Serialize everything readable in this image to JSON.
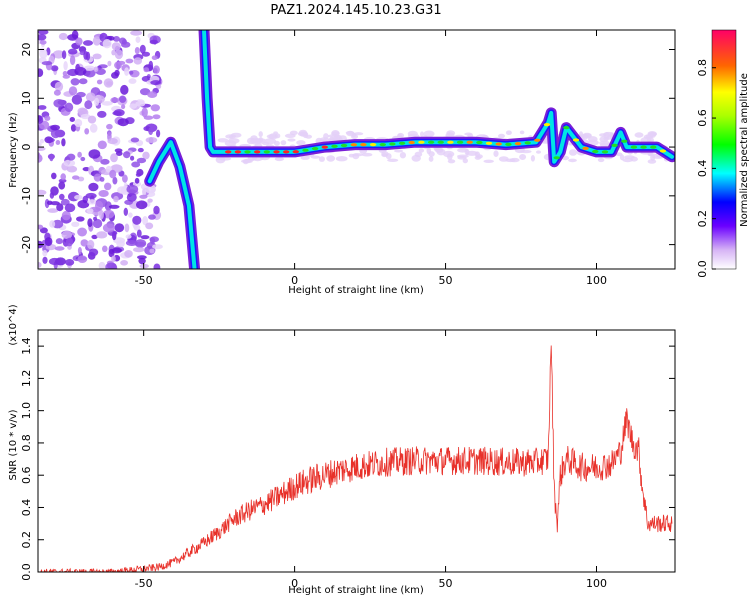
{
  "title": "PAZ1.2024.145.10.23.G31",
  "colors": {
    "snr_line": "#e8312a",
    "ridge_low": "#7a1fd6",
    "ridge_high": "#ff2222"
  },
  "chart_data": [
    {
      "type": "heatmap",
      "title": "PAZ1.2024.145.10.23.G31",
      "xlabel": "Height of straight line (km)",
      "ylabel": "Frequency (Hz)",
      "xlim": [
        -85,
        126
      ],
      "ylim": [
        -25,
        24
      ],
      "xticks": [
        -50,
        0,
        50,
        100
      ],
      "yticks": [
        -20,
        -10,
        0,
        10,
        20
      ],
      "colorbar": {
        "label": "Normalized spectral amplitude",
        "range": [
          0.0,
          0.95
        ],
        "ticks": [
          "0.0",
          "0.2",
          "0.4",
          "0.6",
          "0.8"
        ]
      },
      "ridge": {
        "x": [
          -48,
          -45,
          -41,
          -38,
          -35,
          -33,
          -30,
          -29,
          -28,
          -27,
          -25,
          -20,
          -10,
          0,
          10,
          20,
          30,
          40,
          50,
          60,
          70,
          80,
          84,
          85,
          86,
          88,
          90,
          95,
          100,
          105,
          108,
          110,
          115,
          120,
          125
        ],
        "y": [
          -7,
          -3,
          1,
          -4,
          -12,
          -26,
          24,
          10,
          0,
          -1,
          -1,
          -1,
          -1,
          -1,
          0,
          0.5,
          0.5,
          1,
          1,
          1,
          0.5,
          1,
          5,
          7,
          -3,
          -1,
          4,
          0,
          -1,
          -1,
          3,
          0,
          0,
          0,
          -2
        ]
      }
    },
    {
      "type": "line",
      "xlabel": "Height of straight line (km)",
      "ylabel": "SNR (10 * v/v)",
      "y_multiplier": "(x10^4)",
      "xlim": [
        -85,
        126
      ],
      "ylim": [
        0.0,
        1.5
      ],
      "xticks": [
        -50,
        0,
        50,
        100
      ],
      "yticks": [
        "0.0",
        "0.2",
        "0.4",
        "0.6",
        "0.8",
        "1.0",
        "1.2",
        "1.4"
      ],
      "series": [
        {
          "x": [
            -85,
            -60,
            -45,
            -40,
            -35,
            -30,
            -25,
            -20,
            -15,
            -10,
            -5,
            0,
            5,
            10,
            15,
            20,
            30,
            40,
            50,
            60,
            70,
            80,
            84,
            85,
            86,
            87,
            88,
            90,
            95,
            100,
            105,
            108,
            110,
            112,
            114,
            115,
            117,
            120,
            125
          ],
          "values": [
            0.0,
            0.0,
            0.03,
            0.06,
            0.12,
            0.18,
            0.25,
            0.33,
            0.38,
            0.42,
            0.47,
            0.53,
            0.57,
            0.6,
            0.63,
            0.65,
            0.68,
            0.69,
            0.69,
            0.69,
            0.68,
            0.68,
            0.7,
            1.45,
            0.5,
            0.3,
            0.6,
            0.7,
            0.65,
            0.65,
            0.67,
            0.75,
            0.95,
            0.8,
            0.75,
            0.55,
            0.3,
            0.3,
            0.3
          ]
        }
      ]
    }
  ]
}
